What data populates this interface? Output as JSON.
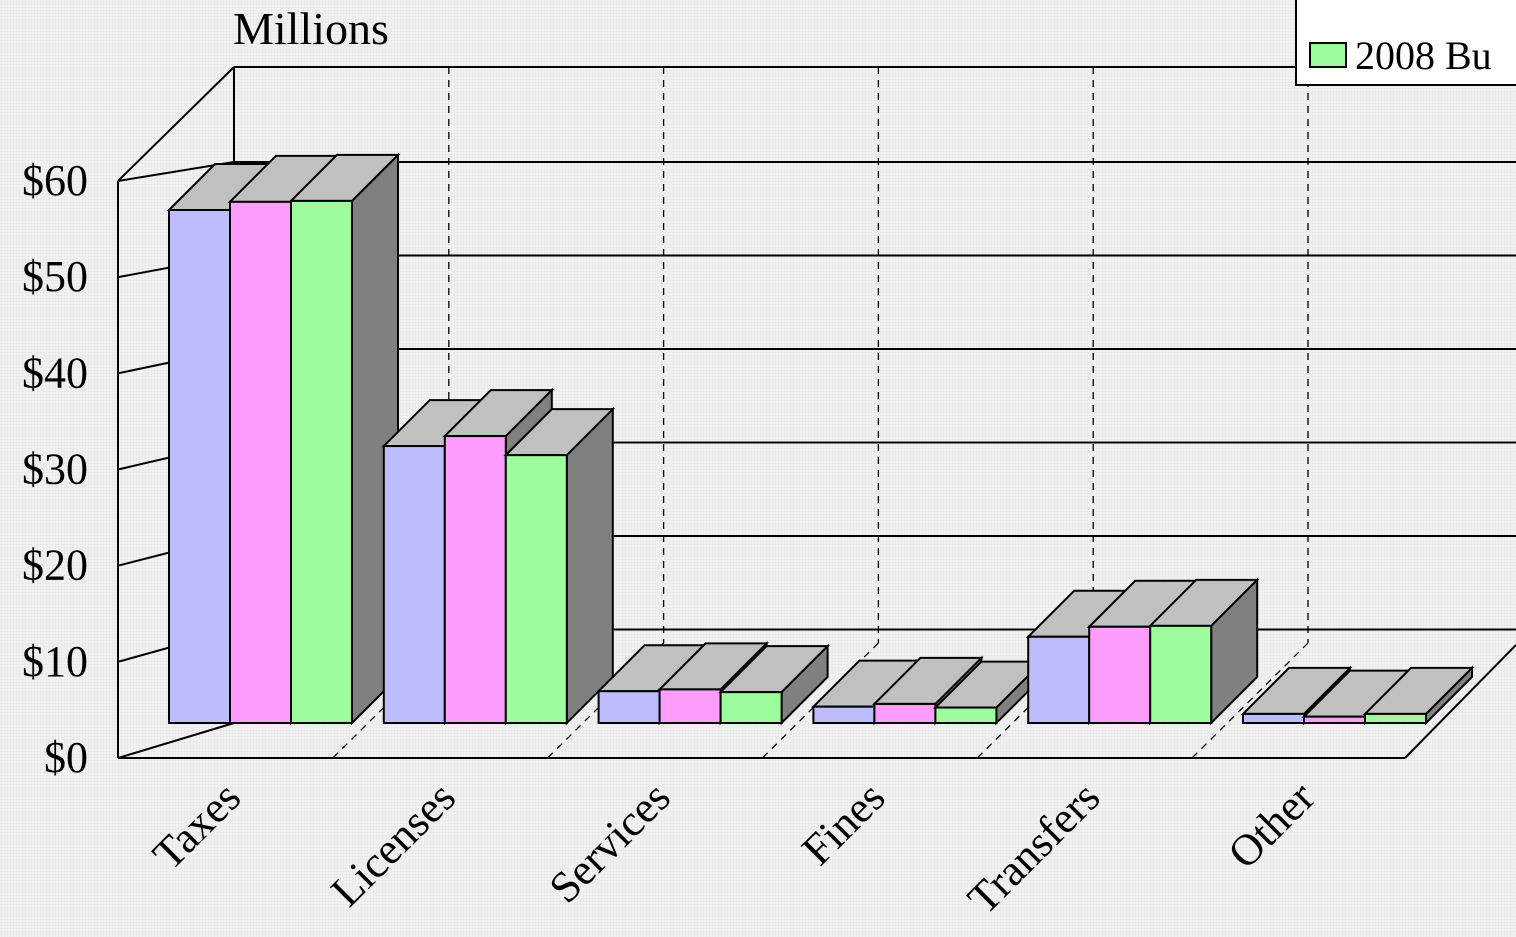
{
  "chart_data": {
    "type": "bar",
    "style": "3d-clustered-column",
    "units_label": "Millions",
    "categories": [
      "Taxes",
      "Licenses",
      "Services",
      "Fines",
      "Transfers",
      "Other"
    ],
    "series": [
      {
        "values": [
          56.5,
          30.5,
          3.5,
          1.8,
          9.5,
          1.0
        ],
        "color": "#bdbdfd"
      },
      {
        "values": [
          57.4,
          31.6,
          3.7,
          2.1,
          10.6,
          0.7
        ],
        "color": "#fd9dfd"
      },
      {
        "name": "2008 Bu",
        "values": [
          57.5,
          29.5,
          3.4,
          1.7,
          10.7,
          1.0
        ],
        "color": "#9dfd9d"
      }
    ],
    "yticks": [
      "$0",
      "$10",
      "$20",
      "$30",
      "$40",
      "$50",
      "$60"
    ],
    "ylim": [
      0,
      60
    ],
    "grid": true,
    "legend_position": "top-right",
    "colors": {
      "top_face": "#c0c0c0",
      "side_face": "#808080",
      "background": "#f3f3f3"
    }
  }
}
